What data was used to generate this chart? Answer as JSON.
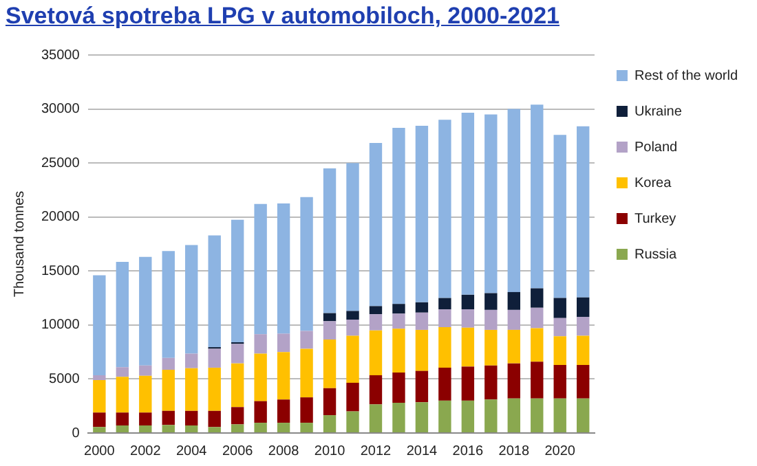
{
  "chart_data": {
    "type": "bar",
    "title": "Svetová spotreba LPG v automobiloch, 2000-2021",
    "ylabel": "Thousand tonnes",
    "categories": [
      "2000",
      null,
      "2002",
      null,
      "2004",
      null,
      "2006",
      null,
      "2008",
      null,
      "2010",
      null,
      "2012",
      null,
      "2014",
      null,
      "2016",
      null,
      "2018",
      null,
      "2020",
      null
    ],
    "stacked": true,
    "ylim": [
      0,
      35000
    ],
    "yticks": [
      0,
      5000,
      10000,
      15000,
      20000,
      25000,
      30000,
      35000
    ],
    "grid": "y",
    "legend": "right",
    "series": [
      {
        "name": "Russia",
        "color": "#8aa84f",
        "values": [
          550,
          700,
          700,
          750,
          700,
          550,
          800,
          950,
          950,
          950,
          1650,
          2000,
          2650,
          2800,
          2850,
          3000,
          3000,
          3100,
          3200,
          3200,
          3200,
          3200
        ]
      },
      {
        "name": "Turkey",
        "color": "#8b0000",
        "values": [
          1350,
          1200,
          1200,
          1300,
          1350,
          1500,
          1600,
          2000,
          2150,
          2350,
          2500,
          2650,
          2700,
          2800,
          2900,
          3050,
          3150,
          3150,
          3250,
          3400,
          3100,
          3100
        ]
      },
      {
        "name": "Korea",
        "color": "#ffc000",
        "values": [
          3000,
          3300,
          3400,
          3800,
          3950,
          4000,
          4050,
          4400,
          4400,
          4500,
          4500,
          4350,
          4150,
          4050,
          3800,
          3750,
          3600,
          3300,
          3100,
          3100,
          2650,
          2700
        ]
      },
      {
        "name": "Poland",
        "color": "#b3a2c7",
        "values": [
          450,
          900,
          950,
          1100,
          1350,
          1750,
          1800,
          1800,
          1700,
          1650,
          1700,
          1500,
          1500,
          1400,
          1600,
          1650,
          1700,
          1850,
          1850,
          1900,
          1700,
          1750
        ]
      },
      {
        "name": "Ukraine",
        "color": "#0f1f3a",
        "values": [
          0,
          0,
          0,
          0,
          0,
          150,
          150,
          0,
          0,
          0,
          750,
          800,
          750,
          900,
          950,
          1050,
          1350,
          1550,
          1650,
          1800,
          1850,
          1800
        ]
      },
      {
        "name": "Rest of the world",
        "color": "#8db4e2",
        "values": [
          9250,
          9750,
          10050,
          9900,
          10050,
          10350,
          11350,
          12050,
          12050,
          12400,
          13400,
          13700,
          15100,
          16300,
          16350,
          16500,
          16850,
          16550,
          16950,
          17000,
          15100,
          15850
        ]
      }
    ]
  }
}
